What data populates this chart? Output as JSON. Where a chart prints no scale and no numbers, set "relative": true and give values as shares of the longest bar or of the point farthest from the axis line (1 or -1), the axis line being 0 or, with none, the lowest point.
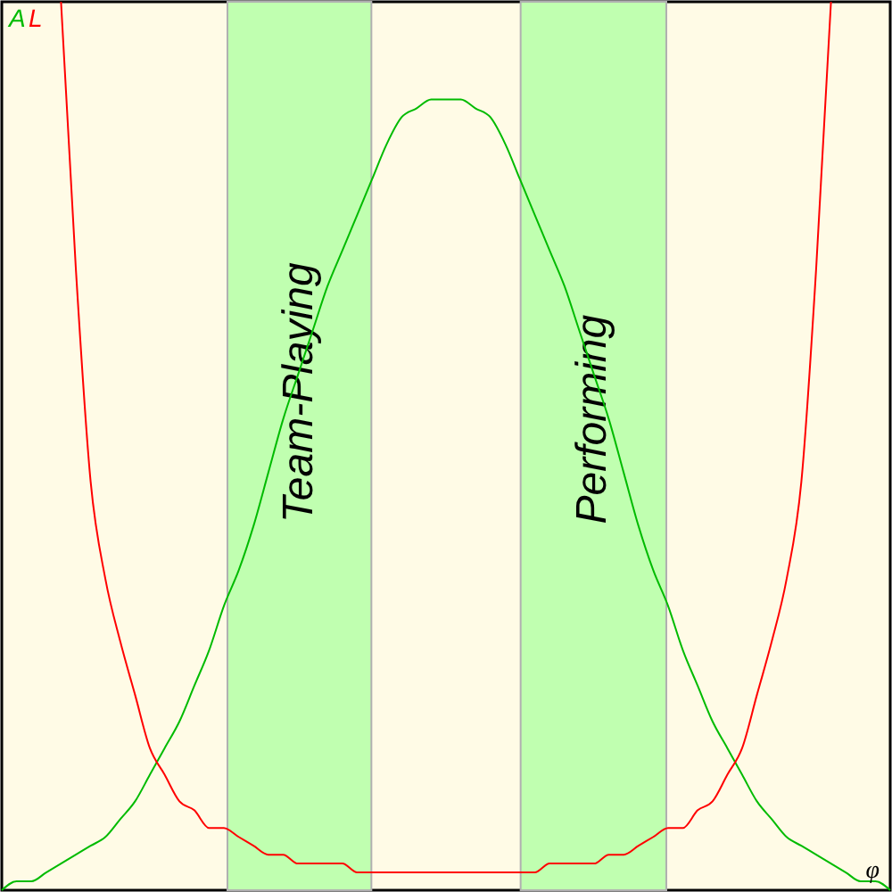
{
  "chart_data": {
    "type": "line",
    "relative": true,
    "xlabel": "φ",
    "categories": [
      null,
      null,
      null,
      null,
      null,
      null,
      null,
      null,
      null,
      null,
      null,
      null,
      null,
      null,
      null,
      null,
      null,
      null,
      null,
      null,
      null,
      null,
      null,
      null,
      null,
      null,
      null,
      null,
      null,
      null,
      null,
      null,
      null,
      null,
      null,
      null,
      null,
      null,
      null,
      null,
      null,
      null,
      null,
      null,
      null,
      null,
      null,
      null,
      null,
      null,
      null,
      null,
      null,
      null,
      null,
      null,
      null,
      null,
      null,
      null,
      null
    ],
    "series": [
      {
        "name": "A",
        "color": "#00bb00",
        "values": [
          0.0,
          0.01,
          0.01,
          0.02,
          0.03,
          0.04,
          0.05,
          0.06,
          0.08,
          0.1,
          0.13,
          0.16,
          0.19,
          0.23,
          0.27,
          0.32,
          0.36,
          0.41,
          0.47,
          0.53,
          0.58,
          0.63,
          0.68,
          0.72,
          0.76,
          0.8,
          0.84,
          0.87,
          0.88,
          0.89,
          0.89,
          0.89,
          0.88,
          0.87,
          0.84,
          0.8,
          0.76,
          0.72,
          0.68,
          0.63,
          0.58,
          0.53,
          0.47,
          0.41,
          0.36,
          0.32,
          0.27,
          0.23,
          0.19,
          0.16,
          0.13,
          0.1,
          0.08,
          0.06,
          0.05,
          0.04,
          0.03,
          0.02,
          0.01,
          0.01,
          0.0
        ]
      },
      {
        "name": "L",
        "color": "#ff0000",
        "values": [
          null,
          null,
          null,
          null,
          1.0,
          0.7,
          0.46,
          0.35,
          0.28,
          0.22,
          0.16,
          0.13,
          0.1,
          0.09,
          0.07,
          0.07,
          0.06,
          0.05,
          0.04,
          0.04,
          0.03,
          0.03,
          0.03,
          0.03,
          0.02,
          0.02,
          0.02,
          0.02,
          0.02,
          0.02,
          0.02,
          0.02,
          0.02,
          0.02,
          0.02,
          0.02,
          0.02,
          0.03,
          0.03,
          0.03,
          0.03,
          0.04,
          0.04,
          0.05,
          0.06,
          0.07,
          0.07,
          0.09,
          0.1,
          0.13,
          0.16,
          0.22,
          0.28,
          0.35,
          0.46,
          0.7,
          1.0,
          null,
          null,
          null,
          null
        ]
      }
    ],
    "annotations": [
      "Team-Playing",
      "Performing"
    ]
  }
}
